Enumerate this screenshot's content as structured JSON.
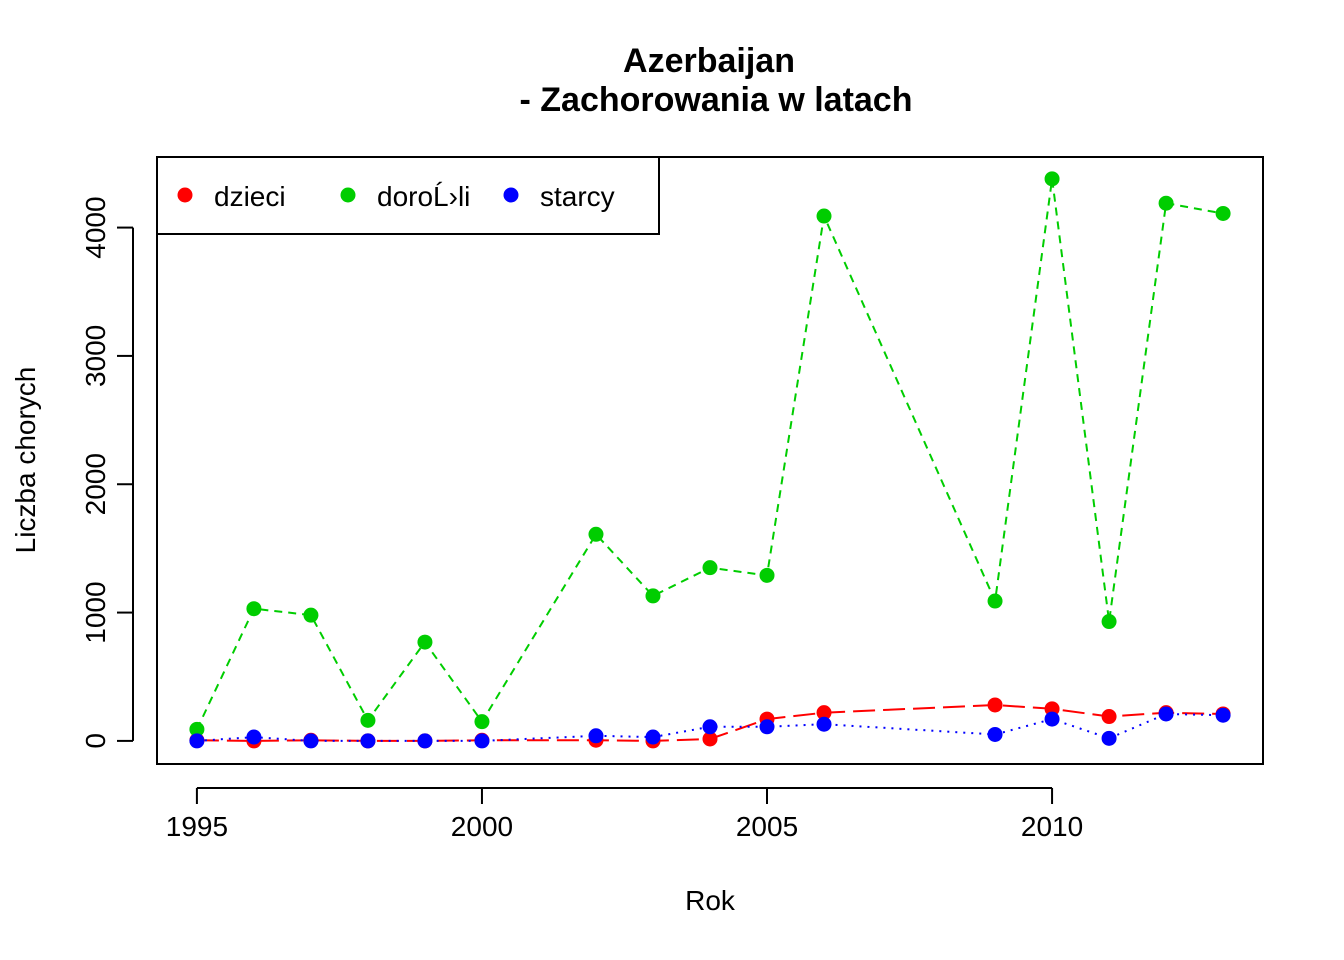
{
  "chart_data": {
    "type": "line",
    "title": [
      "Azerbaijan",
      "- Zachorowania w latach"
    ],
    "xlabel": "Rok",
    "ylabel": "Liczba chorych",
    "xlim": [
      1994.3,
      2013.7
    ],
    "ylim": [
      -180,
      4550
    ],
    "x_ticks": [
      1995,
      2000,
      2005,
      2010
    ],
    "y_ticks": [
      0,
      1000,
      2000,
      3000,
      4000
    ],
    "grid": false,
    "legend_position": "top-left",
    "x": [
      1995,
      1996,
      1997,
      1998,
      1999,
      2000,
      2002,
      2003,
      2004,
      2005,
      2006,
      2009,
      2010,
      2011,
      2012,
      2013
    ],
    "series": [
      {
        "name": "dzieci",
        "color": "#ff0000",
        "line_style": "longdash",
        "values": [
          5,
          0,
          5,
          0,
          0,
          5,
          5,
          0,
          15,
          170,
          220,
          280,
          250,
          190,
          220,
          210
        ]
      },
      {
        "name": "doroĹ›li",
        "color": "#00cd00",
        "line_style": "dashed",
        "values": [
          90,
          1030,
          980,
          160,
          770,
          150,
          1610,
          1130,
          1350,
          1290,
          4090,
          1090,
          4380,
          930,
          4190,
          4110
        ]
      },
      {
        "name": "starcy",
        "color": "#0000ff",
        "line_style": "dotted",
        "values": [
          0,
          30,
          0,
          0,
          0,
          0,
          40,
          30,
          110,
          110,
          130,
          50,
          170,
          20,
          210,
          200
        ]
      }
    ]
  }
}
